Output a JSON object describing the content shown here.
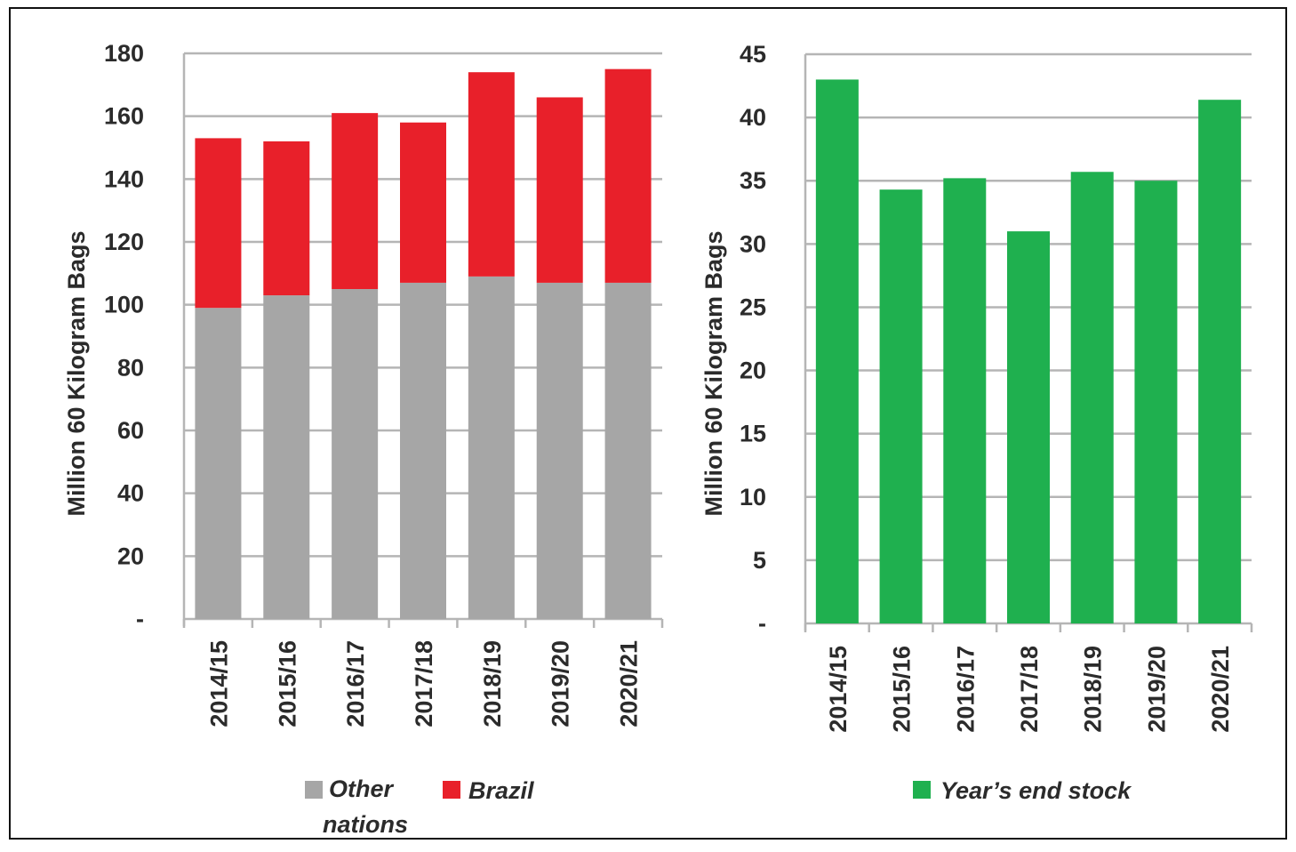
{
  "chart_data": [
    {
      "type": "bar",
      "stacked": true,
      "categories": [
        "2014/15",
        "2015/16",
        "2016/17",
        "2017/18",
        "2018/19",
        "2019/20",
        "2020/21"
      ],
      "series": [
        {
          "name": "Other nations",
          "values": [
            99,
            103,
            105,
            107,
            109,
            107,
            107
          ],
          "color": "#a6a6a6"
        },
        {
          "name": "Brazil",
          "values": [
            54,
            49,
            56,
            51,
            65,
            59,
            68
          ],
          "color": "#e8202a"
        }
      ],
      "ylabel": "Million 60 Kilogram Bags",
      "ylim": [
        0,
        180
      ],
      "yticks": [
        0,
        20,
        40,
        60,
        80,
        100,
        120,
        140,
        160,
        180
      ],
      "ytick_labels": [
        "-",
        "20",
        "40",
        "60",
        "80",
        "100",
        "120",
        "140",
        "160",
        "180"
      ],
      "grid": true,
      "legend_position": "bottom"
    },
    {
      "type": "bar",
      "categories": [
        "2014/15",
        "2015/16",
        "2016/17",
        "2017/18",
        "2018/19",
        "2019/20",
        "2020/21"
      ],
      "series": [
        {
          "name": "Year’s end stock",
          "values": [
            43,
            34.3,
            35.2,
            31,
            35.7,
            35,
            41.4
          ],
          "color": "#1fb04f"
        }
      ],
      "ylabel": "Million 60 Kilogram Bags",
      "ylim": [
        0,
        45
      ],
      "yticks": [
        0,
        5,
        10,
        15,
        20,
        25,
        30,
        35,
        40,
        45
      ],
      "ytick_labels": [
        "-",
        "5",
        "10",
        "15",
        "20",
        "25",
        "30",
        "35",
        "40",
        "45"
      ],
      "grid": true,
      "legend_position": "bottom"
    }
  ]
}
